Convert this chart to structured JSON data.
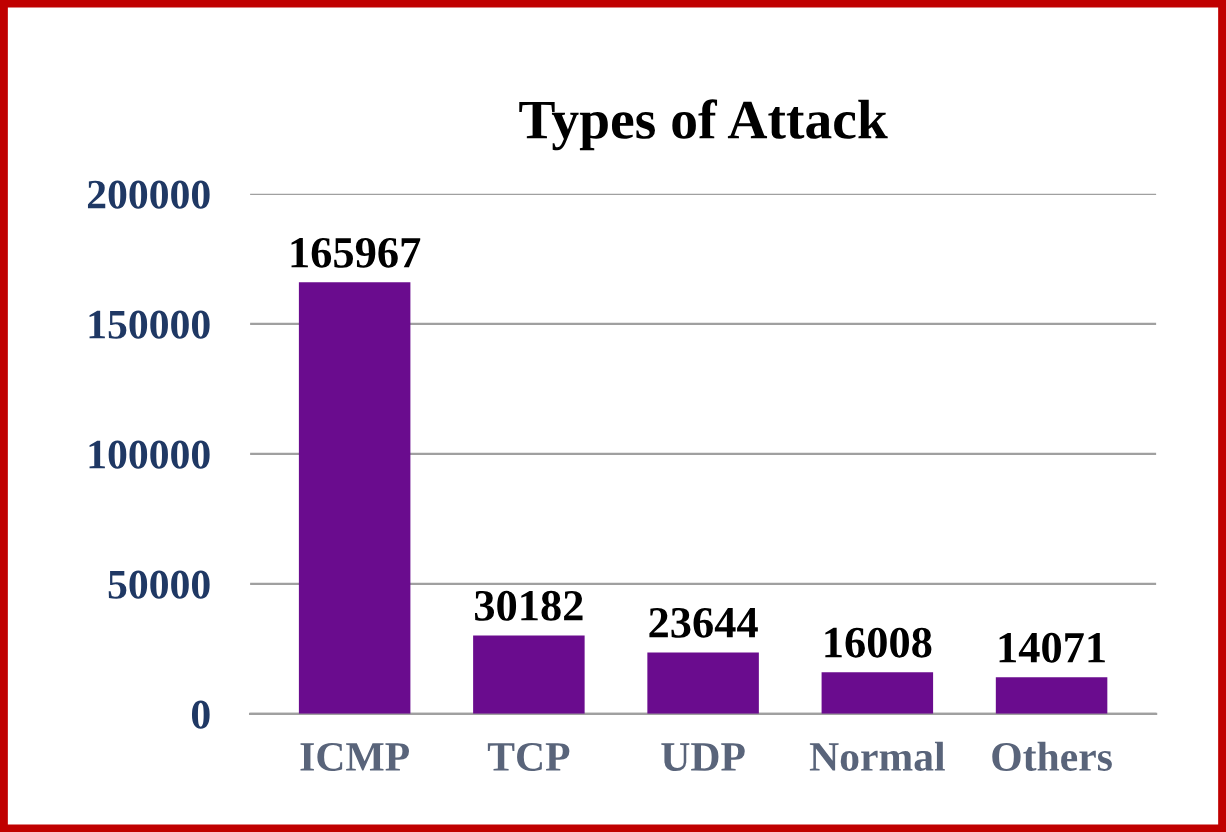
{
  "chart_data": {
    "type": "bar",
    "title": "Types of Attack",
    "categories": [
      "ICMP",
      "TCP",
      "UDP",
      "Normal",
      "Others"
    ],
    "values": [
      165967,
      30182,
      23644,
      16008,
      14071
    ],
    "color": "#6a0c8e",
    "ylim": [
      0,
      200000
    ],
    "yticks": [
      0,
      50000,
      100000,
      150000,
      200000
    ],
    "grid": "y",
    "data_labels": true
  }
}
